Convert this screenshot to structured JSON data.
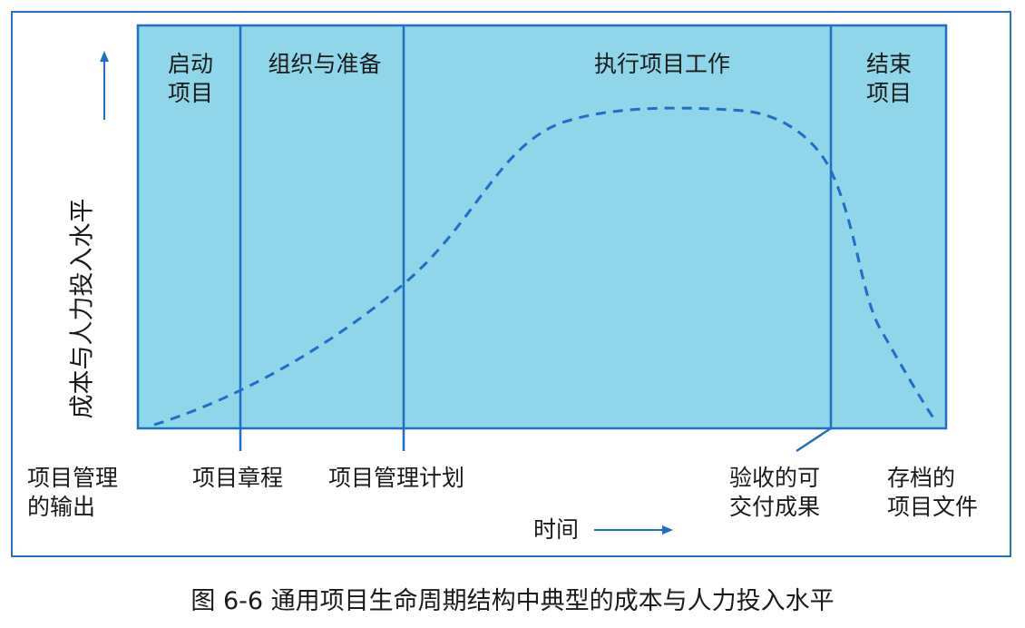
{
  "diagram": {
    "y_axis_label": "成本与人力投入水平",
    "x_axis_label": "时间",
    "phases": [
      {
        "id": "start",
        "label": "启动\n项目"
      },
      {
        "id": "organize",
        "label": "组织与准备"
      },
      {
        "id": "execute",
        "label": "执行项目工作"
      },
      {
        "id": "close",
        "label": "结束\n项目"
      }
    ],
    "outputs": [
      {
        "id": "pm-output",
        "label": "项目管理\n的输出"
      },
      {
        "id": "charter",
        "label": "项目章程"
      },
      {
        "id": "pm-plan",
        "label": "项目管理计划"
      },
      {
        "id": "deliverables",
        "label": "验收的可\n交付成果"
      },
      {
        "id": "archive",
        "label": "存档的\n项目文件"
      }
    ],
    "curve_style": "dashed",
    "plot_fill_color": "#8fd6e8",
    "line_color": "#1f6fc9"
  },
  "caption": "图 6-6    通用项目生命周期结构中典型的成本与人力投入水平"
}
